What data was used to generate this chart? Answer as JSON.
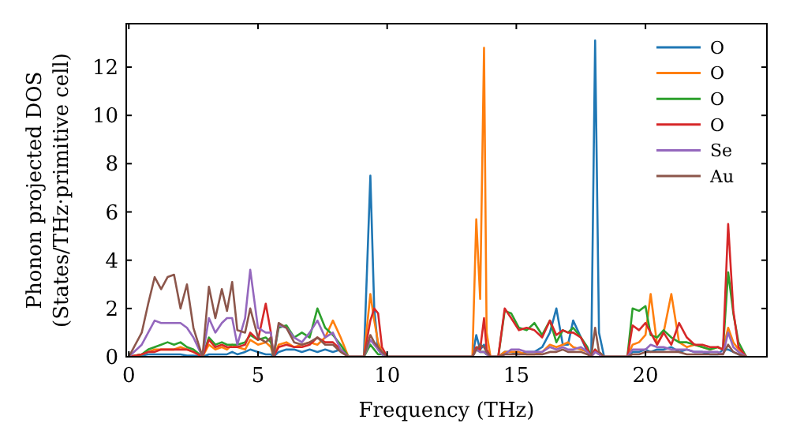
{
  "chart_data": {
    "type": "line",
    "xlabel": "Frequency (THz)",
    "ylabel": "Phonon projected DOS\n(States/THz·primitive cell)",
    "xlim": [
      -0.1,
      24.7
    ],
    "ylim": [
      0,
      13.8
    ],
    "xticks": [
      0,
      5,
      10,
      15,
      20
    ],
    "yticks": [
      0,
      2,
      4,
      6,
      8,
      10,
      12
    ],
    "grid": false,
    "legend": "top right",
    "marker": "none",
    "line_style": "solid",
    "x": [
      0,
      0.5,
      0.75,
      1.0,
      1.25,
      1.5,
      1.75,
      2.0,
      2.25,
      2.5,
      2.85,
      3.1,
      3.35,
      3.6,
      3.8,
      4.0,
      4.2,
      4.5,
      4.7,
      5.0,
      5.3,
      5.5,
      5.6,
      5.8,
      6.1,
      6.4,
      6.7,
      7.0,
      7.3,
      7.6,
      7.9,
      8.2,
      8.5,
      9.1,
      9.35,
      9.5,
      9.65,
      9.8,
      10.0,
      13.3,
      13.45,
      13.6,
      13.75,
      13.85,
      14.0,
      14.3,
      14.55,
      14.8,
      15.1,
      15.4,
      15.7,
      16.0,
      16.3,
      16.55,
      16.8,
      17.0,
      17.2,
      17.5,
      17.75,
      17.9,
      18.05,
      18.2,
      18.4,
      19.3,
      19.5,
      19.75,
      20.0,
      20.2,
      20.45,
      20.7,
      21.0,
      21.3,
      21.6,
      21.9,
      22.2,
      22.5,
      22.8,
      23.0,
      23.2,
      23.4,
      23.6,
      23.9
    ],
    "series": [
      {
        "name": "O",
        "color": "#1f77b4",
        "values": [
          0,
          0.05,
          0.1,
          0.1,
          0.1,
          0.1,
          0.1,
          0.1,
          0.05,
          0.05,
          0,
          0.1,
          0.1,
          0.1,
          0.1,
          0.2,
          0.1,
          0.2,
          0.3,
          0.2,
          0.1,
          0.1,
          0,
          0.2,
          0.3,
          0.3,
          0.2,
          0.3,
          0.2,
          0.3,
          0.2,
          0.3,
          0,
          0,
          7.5,
          2.0,
          0.3,
          0.1,
          0,
          0,
          0.9,
          0.3,
          0.5,
          0.2,
          0,
          0,
          0.2,
          0.2,
          0.1,
          0.2,
          0.2,
          0.4,
          1.0,
          2.0,
          0.5,
          0.5,
          1.5,
          0.8,
          0.2,
          0,
          13.1,
          1.0,
          0,
          0,
          0.2,
          0.2,
          0.3,
          0.2,
          0.3,
          0.3,
          0.4,
          0.2,
          0.3,
          0.2,
          0.2,
          0.1,
          0.1,
          0.3,
          0.3,
          0.2,
          0.1,
          0
        ]
      },
      {
        "name": "O",
        "color": "#ff7f0e",
        "values": [
          0,
          0.1,
          0.2,
          0.3,
          0.3,
          0.3,
          0.3,
          0.4,
          0.3,
          0.2,
          0,
          0.5,
          0.3,
          0.4,
          0.3,
          0.5,
          0.4,
          0.3,
          0.7,
          0.5,
          0.6,
          0.4,
          0,
          0.5,
          0.6,
          0.4,
          0.5,
          0.6,
          0.5,
          0.8,
          1.5,
          0.8,
          0,
          0,
          2.6,
          1.5,
          0.6,
          0.2,
          0,
          0,
          5.7,
          2.4,
          12.8,
          1.0,
          0,
          0,
          0.2,
          0.2,
          0.2,
          0.1,
          0.1,
          0.2,
          0.5,
          0.4,
          0.5,
          0.6,
          0.4,
          0.3,
          0.2,
          0,
          0.2,
          0.2,
          0,
          0,
          0.5,
          0.6,
          0.9,
          2.6,
          0.5,
          1.0,
          2.6,
          0.6,
          0.4,
          0.5,
          0.4,
          0.3,
          0.4,
          0.3,
          1.2,
          0.6,
          0.3,
          0
        ]
      },
      {
        "name": "O",
        "color": "#2ca02c",
        "values": [
          0,
          0.1,
          0.3,
          0.4,
          0.5,
          0.6,
          0.5,
          0.6,
          0.4,
          0.3,
          0,
          0.8,
          0.5,
          0.6,
          0.5,
          0.5,
          0.5,
          0.6,
          0.9,
          0.7,
          0.8,
          0.6,
          0,
          1.2,
          1.3,
          0.8,
          1.0,
          0.8,
          2.0,
          1.2,
          0.9,
          0.5,
          0,
          0,
          0.5,
          0.3,
          0.1,
          0.1,
          0,
          0,
          0.3,
          0.2,
          0.2,
          0.1,
          0,
          0,
          1.9,
          1.8,
          1.2,
          1.1,
          1.4,
          0.9,
          1.5,
          0.6,
          1.1,
          1.0,
          1.2,
          0.8,
          0.4,
          0,
          0.3,
          0.1,
          0,
          0,
          2.0,
          1.9,
          2.1,
          0.9,
          0.8,
          1.1,
          0.8,
          0.6,
          0.6,
          0.5,
          0.4,
          0.3,
          0.4,
          0.3,
          3.5,
          1.8,
          0.6,
          0
        ]
      },
      {
        "name": "O",
        "color": "#d62728",
        "values": [
          0,
          0.1,
          0.2,
          0.2,
          0.3,
          0.3,
          0.3,
          0.3,
          0.3,
          0.2,
          0,
          0.7,
          0.4,
          0.5,
          0.4,
          0.4,
          0.4,
          0.5,
          1.0,
          0.7,
          2.2,
          1.0,
          0,
          0.4,
          0.5,
          0.4,
          0.4,
          0.5,
          0.8,
          0.6,
          0.6,
          0.3,
          0,
          0,
          1.5,
          2.0,
          1.8,
          0.4,
          0,
          0,
          0.4,
          0.3,
          1.6,
          0.3,
          0,
          0,
          2.0,
          1.6,
          1.1,
          1.2,
          1.1,
          0.8,
          1.5,
          0.9,
          1.1,
          1.0,
          1.0,
          0.8,
          0.3,
          0,
          0.3,
          0.1,
          0,
          0,
          1.3,
          1.1,
          1.4,
          1.0,
          0.5,
          1.0,
          0.5,
          1.4,
          0.8,
          0.5,
          0.5,
          0.4,
          0.4,
          0.3,
          5.5,
          1.9,
          0.4,
          0
        ]
      },
      {
        "name": "Se",
        "color": "#9467bd",
        "values": [
          0,
          0.5,
          1.0,
          1.5,
          1.4,
          1.4,
          1.4,
          1.4,
          1.2,
          0.8,
          0,
          1.6,
          1.0,
          1.4,
          1.6,
          1.6,
          0.5,
          1.6,
          3.6,
          1.2,
          1.0,
          1.0,
          0,
          1.3,
          1.2,
          0.8,
          0.6,
          1.0,
          1.5,
          0.8,
          1.0,
          0.3,
          0,
          0,
          0.7,
          0.5,
          0.3,
          0.1,
          0,
          0,
          0.3,
          0.2,
          0.2,
          0.1,
          0,
          0,
          0.1,
          0.3,
          0.3,
          0.2,
          0.2,
          0.2,
          0.4,
          0.3,
          0.4,
          0.3,
          0.3,
          0.4,
          0.2,
          0,
          0.2,
          0.1,
          0,
          0,
          0.3,
          0.3,
          0.3,
          0.5,
          0.4,
          0.4,
          0.3,
          0.3,
          0.3,
          0.2,
          0.2,
          0.2,
          0.2,
          0.1,
          1.0,
          0.4,
          0.2,
          0
        ]
      },
      {
        "name": "Au",
        "color": "#8c564b",
        "values": [
          0,
          1.0,
          2.2,
          3.3,
          2.8,
          3.3,
          3.4,
          2.0,
          3.0,
          1.2,
          0,
          2.9,
          1.6,
          2.8,
          1.9,
          3.1,
          1.1,
          1.0,
          2.0,
          0.8,
          0.6,
          0.8,
          0,
          1.4,
          1.2,
          0.6,
          0.5,
          0.6,
          0.8,
          0.5,
          0.5,
          0.2,
          0,
          0,
          0.9,
          0.6,
          0.4,
          0.2,
          0,
          0,
          0.3,
          0.5,
          0.4,
          0.2,
          0,
          0,
          0.1,
          0.1,
          0.1,
          0.1,
          0.1,
          0.1,
          0.2,
          0.2,
          0.3,
          0.2,
          0.2,
          0.2,
          0.1,
          0,
          1.2,
          0.2,
          0,
          0,
          0.1,
          0.1,
          0.2,
          0.2,
          0.2,
          0.2,
          0.2,
          0.2,
          0.1,
          0.1,
          0.1,
          0.1,
          0.1,
          0.1,
          0.5,
          0.2,
          0.1,
          0
        ]
      }
    ]
  }
}
